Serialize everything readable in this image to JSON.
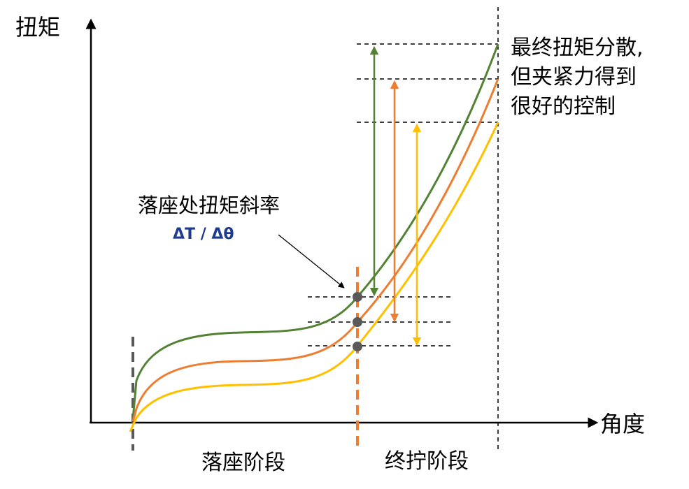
{
  "chart_data": {
    "type": "line",
    "ylabel": "扭矩",
    "xlabel": "角度",
    "phases": [
      {
        "name": "落座阶段"
      },
      {
        "name": "终拧阶段"
      }
    ],
    "annotations": {
      "slope_label": "落座处扭矩斜率",
      "slope_formula": "ΔT / Δθ",
      "result_lines": [
        "最终扭矩分散,",
        "但夹紧力得到",
        "很好的控制"
      ]
    },
    "series": [
      {
        "color": "#548235",
        "seat_y": 0.33,
        "final_y": 1.0
      },
      {
        "color": "#ed7d31",
        "seat_y": 0.27,
        "final_y": 0.9
      },
      {
        "color": "#ffc000",
        "seat_y": 0.21,
        "final_y": 0.79
      }
    ],
    "colors": {
      "axis": "#000000",
      "seat_marker": "#595959",
      "phase_divider": "#ed7d31",
      "dot": "#595959"
    }
  }
}
